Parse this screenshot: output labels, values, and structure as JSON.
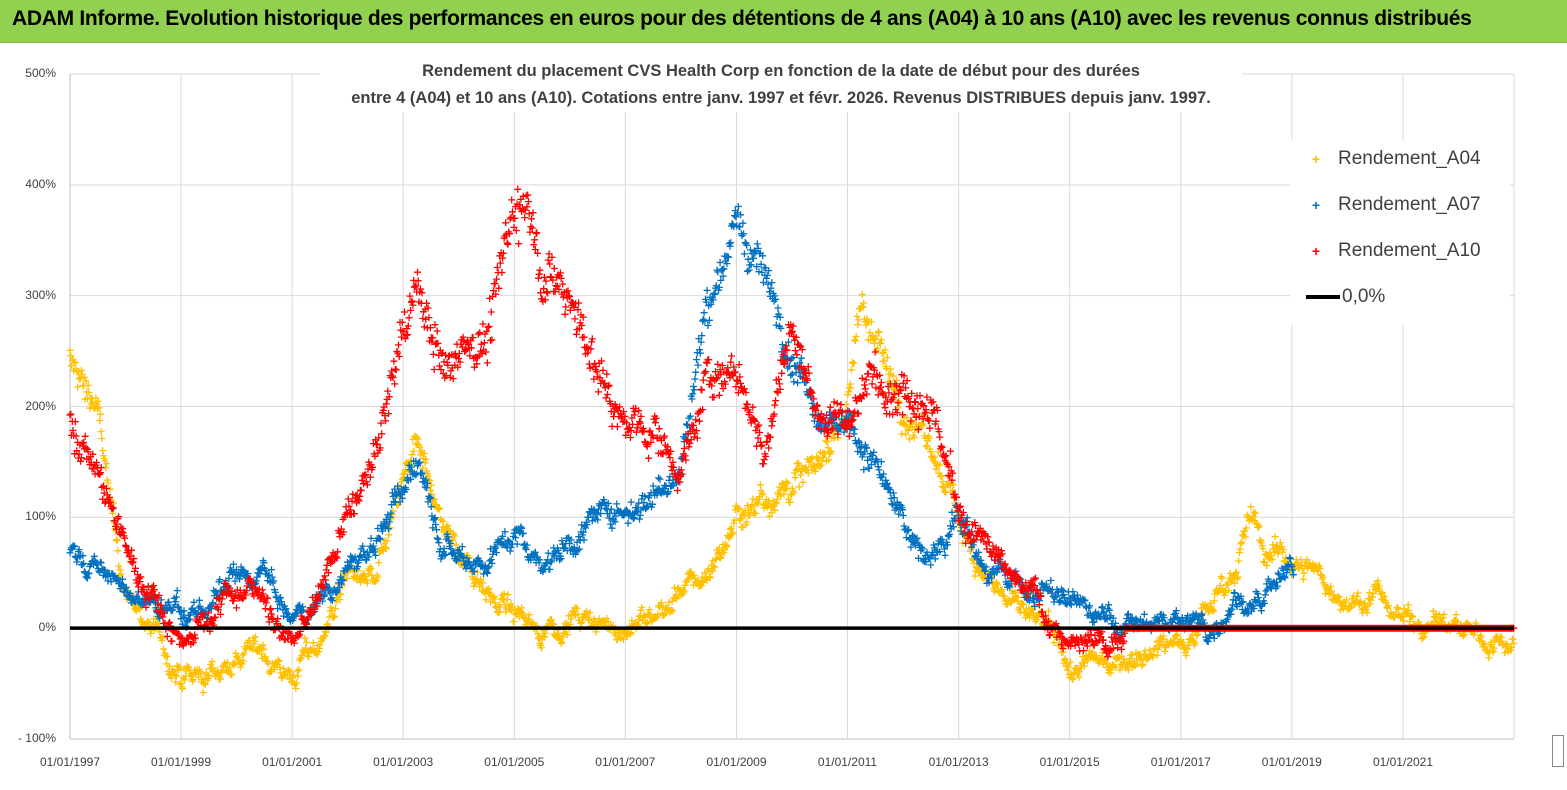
{
  "banner": {
    "text": "ADAM Informe. Evolution historique des performances en euros pour des détentions de 4 ans (A04) à 10 ans (A10) avec les revenus connus distribués"
  },
  "chart_data": {
    "type": "scatter",
    "title_line1": "Rendement du placement CVS Health Corp en fonction de la date de début pour des durées",
    "title_line2": "entre 4 (A04) et 10 ans (A10).  Cotations entre janv. 1997 et févr. 2026. Revenus DISTRIBUES depuis janv. 1997.",
    "x_range": [
      "1997-01-01",
      "2023-01-01"
    ],
    "ylim": [
      -100,
      500
    ],
    "y_ticks": [
      "500%",
      "400%",
      "300%",
      "200%",
      "100%",
      "0%",
      "- 100%"
    ],
    "x_ticks": [
      "01/01/1997",
      "01/01/1999",
      "01/01/2001",
      "01/01/2003",
      "01/01/2005",
      "01/01/2007",
      "01/01/2009",
      "01/01/2011",
      "01/01/2013",
      "01/01/2015",
      "01/01/2017",
      "01/01/2019",
      "01/01/2021"
    ],
    "grid": true,
    "legend_position": "right",
    "series": [
      {
        "name": "Rendement_A04",
        "color": "#ffc000",
        "marker": "+",
        "end": "2022-12-31",
        "keypoints": [
          [
            "1997-01-01",
            240
          ],
          [
            "1997-07-01",
            200
          ],
          [
            "1997-10-01",
            100
          ],
          [
            "1998-01-01",
            30
          ],
          [
            "1998-07-01",
            0
          ],
          [
            "1999-01-01",
            -50
          ],
          [
            "1999-07-01",
            -45
          ],
          [
            "2000-01-01",
            -25
          ],
          [
            "2000-07-01",
            -20
          ],
          [
            "2001-01-01",
            -45
          ],
          [
            "2001-07-01",
            -10
          ],
          [
            "2002-01-01",
            50
          ],
          [
            "2002-07-01",
            40
          ],
          [
            "2003-01-01",
            130
          ],
          [
            "2003-04-01",
            160
          ],
          [
            "2003-10-01",
            90
          ],
          [
            "2004-01-01",
            70
          ],
          [
            "2004-07-01",
            40
          ],
          [
            "2005-01-01",
            10
          ],
          [
            "2005-07-01",
            0
          ],
          [
            "2006-01-01",
            10
          ],
          [
            "2006-07-01",
            0
          ],
          [
            "2007-01-01",
            0
          ],
          [
            "2007-07-01",
            10
          ],
          [
            "2008-01-01",
            30
          ],
          [
            "2008-07-01",
            50
          ],
          [
            "2009-01-01",
            100
          ],
          [
            "2009-07-01",
            120
          ],
          [
            "2010-01-01",
            130
          ],
          [
            "2010-07-01",
            150
          ],
          [
            "2011-01-01",
            200
          ],
          [
            "2011-04-01",
            300
          ],
          [
            "2011-07-01",
            260
          ],
          [
            "2012-01-01",
            200
          ],
          [
            "2012-07-01",
            160
          ],
          [
            "2013-01-01",
            100
          ],
          [
            "2013-07-01",
            50
          ],
          [
            "2014-01-01",
            20
          ],
          [
            "2014-07-01",
            0
          ],
          [
            "2015-01-01",
            -40
          ],
          [
            "2015-07-01",
            -30
          ],
          [
            "2016-01-01",
            -25
          ],
          [
            "2016-07-01",
            -15
          ],
          [
            "2017-01-01",
            -10
          ],
          [
            "2017-07-01",
            20
          ],
          [
            "2018-01-01",
            60
          ],
          [
            "2018-04-01",
            100
          ],
          [
            "2018-07-01",
            70
          ],
          [
            "2019-01-01",
            60
          ],
          [
            "2019-07-01",
            50
          ],
          [
            "2020-01-01",
            20
          ],
          [
            "2020-07-01",
            30
          ],
          [
            "2021-01-01",
            10
          ],
          [
            "2021-07-01",
            10
          ],
          [
            "2022-01-01",
            0
          ],
          [
            "2022-07-01",
            -15
          ],
          [
            "2022-12-31",
            -10
          ]
        ]
      },
      {
        "name": "Rendement_A07",
        "color": "#0070c0",
        "marker": "+",
        "end": "2019-01-15",
        "keypoints": [
          [
            "1997-01-01",
            70
          ],
          [
            "1997-07-01",
            55
          ],
          [
            "1998-01-01",
            30
          ],
          [
            "1998-07-01",
            20
          ],
          [
            "1999-01-01",
            10
          ],
          [
            "1999-07-01",
            20
          ],
          [
            "2000-01-01",
            40
          ],
          [
            "2000-07-01",
            50
          ],
          [
            "2001-01-01",
            0
          ],
          [
            "2001-07-01",
            30
          ],
          [
            "2002-01-01",
            50
          ],
          [
            "2002-07-01",
            80
          ],
          [
            "2003-01-01",
            120
          ],
          [
            "2003-04-01",
            160
          ],
          [
            "2003-10-01",
            80
          ],
          [
            "2004-01-01",
            70
          ],
          [
            "2004-07-01",
            60
          ],
          [
            "2005-01-01",
            90
          ],
          [
            "2005-07-01",
            60
          ],
          [
            "2006-01-01",
            80
          ],
          [
            "2006-07-01",
            100
          ],
          [
            "2007-01-01",
            110
          ],
          [
            "2007-07-01",
            120
          ],
          [
            "2008-01-01",
            150
          ],
          [
            "2008-07-01",
            300
          ],
          [
            "2009-01-01",
            360
          ],
          [
            "2009-07-01",
            320
          ],
          [
            "2010-01-01",
            250
          ],
          [
            "2010-07-01",
            200
          ],
          [
            "2011-01-01",
            180
          ],
          [
            "2011-07-01",
            150
          ],
          [
            "2012-01-01",
            90
          ],
          [
            "2012-07-01",
            60
          ],
          [
            "2013-01-01",
            110
          ],
          [
            "2013-07-01",
            50
          ],
          [
            "2014-01-01",
            40
          ],
          [
            "2014-07-01",
            30
          ],
          [
            "2015-01-01",
            25
          ],
          [
            "2015-07-01",
            10
          ],
          [
            "2016-01-01",
            0
          ],
          [
            "2016-07-01",
            5
          ],
          [
            "2017-01-01",
            10
          ],
          [
            "2017-07-01",
            0
          ],
          [
            "2018-01-01",
            30
          ],
          [
            "2018-07-01",
            20
          ],
          [
            "2019-01-15",
            50
          ]
        ]
      },
      {
        "name": "Rendement_A10",
        "color": "#ff0000",
        "marker": "+",
        "end": "2022-12-31",
        "keypoints": [
          [
            "1997-01-01",
            190
          ],
          [
            "1997-07-01",
            140
          ],
          [
            "1998-01-01",
            70
          ],
          [
            "1998-07-01",
            30
          ],
          [
            "1999-01-01",
            -10
          ],
          [
            "1999-07-01",
            10
          ],
          [
            "2000-01-01",
            40
          ],
          [
            "2000-07-01",
            30
          ],
          [
            "2001-01-01",
            -20
          ],
          [
            "2001-07-01",
            30
          ],
          [
            "2002-01-01",
            100
          ],
          [
            "2002-07-01",
            150
          ],
          [
            "2003-01-01",
            270
          ],
          [
            "2003-04-01",
            310
          ],
          [
            "2003-10-01",
            230
          ],
          [
            "2004-01-01",
            260
          ],
          [
            "2004-07-01",
            260
          ],
          [
            "2005-01-01",
            380
          ],
          [
            "2005-04-01",
            390
          ],
          [
            "2005-07-01",
            320
          ],
          [
            "2006-01-01",
            300
          ],
          [
            "2006-07-01",
            230
          ],
          [
            "2007-01-01",
            180
          ],
          [
            "2007-07-01",
            180
          ],
          [
            "2008-01-01",
            140
          ],
          [
            "2008-07-01",
            230
          ],
          [
            "2009-01-01",
            230
          ],
          [
            "2009-07-01",
            160
          ],
          [
            "2010-01-01",
            270
          ],
          [
            "2010-07-01",
            190
          ],
          [
            "2011-01-01",
            190
          ],
          [
            "2011-07-01",
            230
          ],
          [
            "2012-01-01",
            220
          ],
          [
            "2012-07-01",
            210
          ],
          [
            "2013-01-01",
            100
          ],
          [
            "2013-07-01",
            70
          ],
          [
            "2014-01-01",
            40
          ],
          [
            "2014-07-01",
            20
          ],
          [
            "2015-01-01",
            -15
          ],
          [
            "2015-07-01",
            -20
          ],
          [
            "2016-01-01",
            0
          ],
          [
            "2022-12-31",
            0
          ]
        ]
      }
    ],
    "reference_line": {
      "name": "0,0%",
      "color": "#000000",
      "y": 0
    }
  }
}
